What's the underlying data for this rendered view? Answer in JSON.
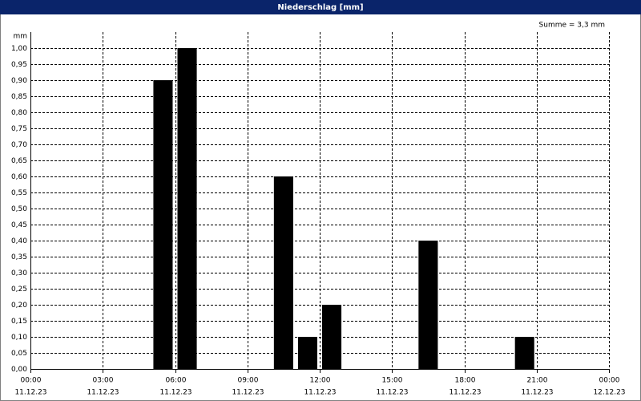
{
  "chart_data": {
    "type": "bar",
    "title": "Niederschlag [mm]",
    "y_label": "mm",
    "annotation": "Summe = 3,3 mm",
    "x": [
      5,
      6,
      10,
      11,
      12,
      16,
      20
    ],
    "values": [
      0.9,
      1.0,
      0.6,
      0.1,
      0.2,
      0.4,
      0.1
    ],
    "color": "#000000",
    "xlim": [
      0,
      24
    ],
    "xticks": [
      {
        "value": 0,
        "label": "00:00",
        "date": "11.12.23"
      },
      {
        "value": 3,
        "label": "03:00",
        "date": "11.12.23"
      },
      {
        "value": 6,
        "label": "06:00",
        "date": "11.12.23"
      },
      {
        "value": 9,
        "label": "09:00",
        "date": "11.12.23"
      },
      {
        "value": 12,
        "label": "12:00",
        "date": "11.12.23"
      },
      {
        "value": 15,
        "label": "15:00",
        "date": "11.12.23"
      },
      {
        "value": 18,
        "label": "18:00",
        "date": "11.12.23"
      },
      {
        "value": 21,
        "label": "21:00",
        "date": "11.12.23"
      },
      {
        "value": 24,
        "label": "00:00",
        "date": "12.12.23"
      }
    ],
    "ylim": [
      0,
      1.05
    ],
    "yticks": [
      {
        "value": 0,
        "label": "0,00"
      },
      {
        "value": 0.05,
        "label": "0,05"
      },
      {
        "value": 0.1,
        "label": "0,10"
      },
      {
        "value": 0.15,
        "label": "0,15"
      },
      {
        "value": 0.2,
        "label": "0,20"
      },
      {
        "value": 0.25,
        "label": "0,25"
      },
      {
        "value": 0.3,
        "label": "0,30"
      },
      {
        "value": 0.35,
        "label": "0,35"
      },
      {
        "value": 0.4,
        "label": "0,40"
      },
      {
        "value": 0.45,
        "label": "0,45"
      },
      {
        "value": 0.5,
        "label": "0,50"
      },
      {
        "value": 0.55,
        "label": "0,55"
      },
      {
        "value": 0.6,
        "label": "0,60"
      },
      {
        "value": 0.65,
        "label": "0,65"
      },
      {
        "value": 0.7,
        "label": "0,70"
      },
      {
        "value": 0.75,
        "label": "0,75"
      },
      {
        "value": 0.8,
        "label": "0,80"
      },
      {
        "value": 0.85,
        "label": "0,85"
      },
      {
        "value": 0.9,
        "label": "0,90"
      },
      {
        "value": 0.95,
        "label": "0,95"
      },
      {
        "value": 1.0,
        "label": "1,00"
      }
    ],
    "grid": true
  }
}
